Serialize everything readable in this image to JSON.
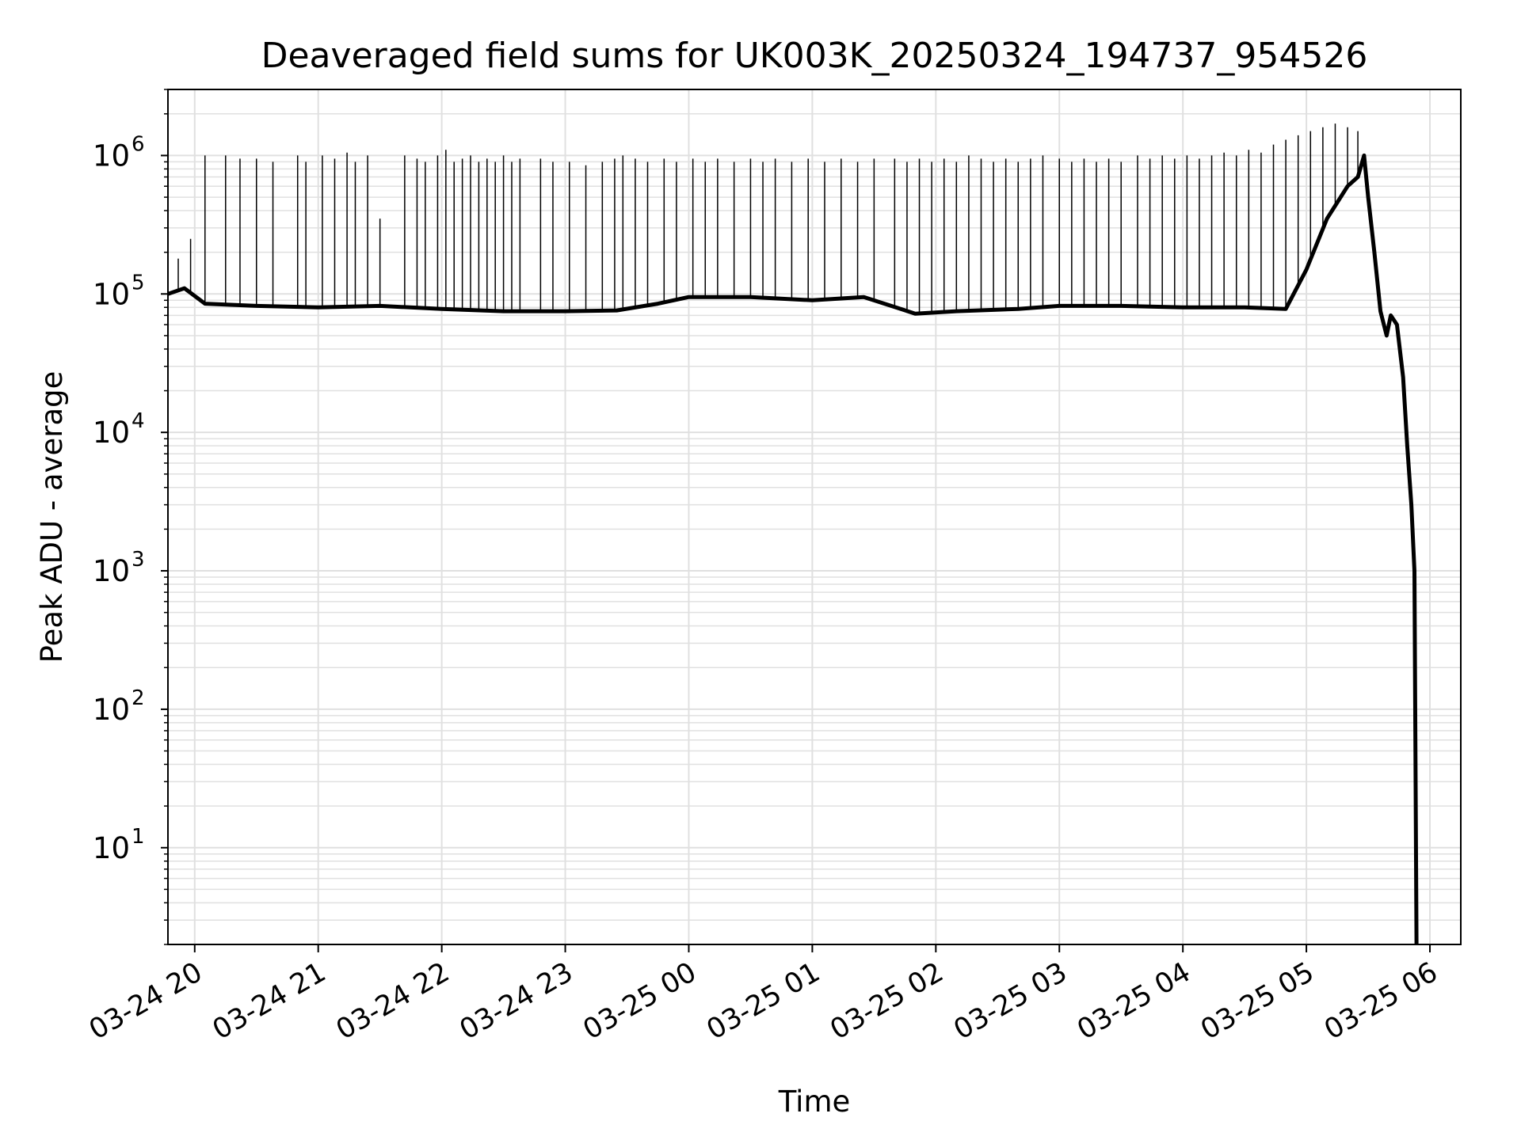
{
  "chart_data": {
    "type": "line",
    "title": "Deaveraged field sums for UK003K_20250324_194737_954526",
    "xlabel": "Time",
    "ylabel": "Peak ADU - average",
    "yscale": "log",
    "grid": true,
    "grid_minor": true,
    "legend": "none",
    "colors": {
      "line": "#000000",
      "grid": "#e0e0e0",
      "axes": "#000000",
      "background": "#ffffff"
    },
    "xlim": [
      "2025-03-24T19:47:00",
      "2025-03-25T06:15:00"
    ],
    "ylim": [
      2,
      3000000
    ],
    "x_ticks": [
      {
        "value": "2025-03-24T20:00:00",
        "label": "03-24 20"
      },
      {
        "value": "2025-03-24T21:00:00",
        "label": "03-24 21"
      },
      {
        "value": "2025-03-24T22:00:00",
        "label": "03-24 22"
      },
      {
        "value": "2025-03-24T23:00:00",
        "label": "03-24 23"
      },
      {
        "value": "2025-03-25T00:00:00",
        "label": "03-25 00"
      },
      {
        "value": "2025-03-25T01:00:00",
        "label": "03-25 01"
      },
      {
        "value": "2025-03-25T02:00:00",
        "label": "03-25 02"
      },
      {
        "value": "2025-03-25T03:00:00",
        "label": "03-25 03"
      },
      {
        "value": "2025-03-25T04:00:00",
        "label": "03-25 04"
      },
      {
        "value": "2025-03-25T05:00:00",
        "label": "03-25 05"
      },
      {
        "value": "2025-03-25T06:00:00",
        "label": "03-25 06"
      }
    ],
    "y_ticks": [
      {
        "value": 10,
        "base": "10",
        "exp": "1"
      },
      {
        "value": 100,
        "base": "10",
        "exp": "2"
      },
      {
        "value": 1000,
        "base": "10",
        "exp": "3"
      },
      {
        "value": 10000,
        "base": "10",
        "exp": "4"
      },
      {
        "value": 100000,
        "base": "10",
        "exp": "5"
      },
      {
        "value": 1000000,
        "base": "10",
        "exp": "6"
      }
    ],
    "series": [
      {
        "x": [
          "2025-03-24T19:47:00",
          "2025-03-24T19:55:00",
          "2025-03-24T20:05:00",
          "2025-03-24T20:30:00",
          "2025-03-24T21:00:00",
          "2025-03-24T21:30:00",
          "2025-03-24T22:00:00",
          "2025-03-24T22:30:00",
          "2025-03-24T22:45:00",
          "2025-03-24T23:00:00",
          "2025-03-24T23:25:00",
          "2025-03-24T23:45:00",
          "2025-03-25T00:00:00",
          "2025-03-25T00:30:00",
          "2025-03-25T01:00:00",
          "2025-03-25T01:25:00",
          "2025-03-25T01:50:00",
          "2025-03-25T02:10:00",
          "2025-03-25T02:40:00",
          "2025-03-25T03:00:00",
          "2025-03-25T03:30:00",
          "2025-03-25T04:00:00",
          "2025-03-25T04:30:00",
          "2025-03-25T04:50:00",
          "2025-03-25T05:00:00",
          "2025-03-25T05:10:00",
          "2025-03-25T05:20:00",
          "2025-03-25T05:25:00",
          "2025-03-25T05:28:00",
          "2025-03-25T05:30:00",
          "2025-03-25T05:33:00",
          "2025-03-25T05:36:00",
          "2025-03-25T05:39:00",
          "2025-03-25T05:41:00",
          "2025-03-25T05:44:00",
          "2025-03-25T05:47:00",
          "2025-03-25T05:49:00",
          "2025-03-25T05:51:00",
          "2025-03-25T05:52:30",
          "2025-03-25T05:53:30"
        ],
        "y": [
          100000,
          110000,
          85000,
          82000,
          80000,
          82000,
          78000,
          75000,
          75000,
          75000,
          76000,
          85000,
          95000,
          95000,
          90000,
          95000,
          72000,
          75000,
          78000,
          82000,
          82000,
          80000,
          80000,
          78000,
          150000,
          350000,
          600000,
          700000,
          1000000,
          500000,
          200000,
          75000,
          50000,
          70000,
          60000,
          25000,
          8000,
          3000,
          1000,
          2
        ],
        "spikes": [
          [
            "2025-03-24T19:52:00",
            180000
          ],
          [
            "2025-03-24T19:58:00",
            250000
          ],
          [
            "2025-03-24T20:05:00",
            1000000
          ],
          [
            "2025-03-24T20:15:00",
            1000000
          ],
          [
            "2025-03-24T20:22:00",
            950000
          ],
          [
            "2025-03-24T20:30:00",
            950000
          ],
          [
            "2025-03-24T20:38:00",
            900000
          ],
          [
            "2025-03-24T20:50:00",
            1000000
          ],
          [
            "2025-03-24T20:54:00",
            900000
          ],
          [
            "2025-03-24T21:02:00",
            1000000
          ],
          [
            "2025-03-24T21:08:00",
            950000
          ],
          [
            "2025-03-24T21:14:00",
            1050000
          ],
          [
            "2025-03-24T21:18:00",
            900000
          ],
          [
            "2025-03-24T21:24:00",
            1000000
          ],
          [
            "2025-03-24T21:30:00",
            350000
          ],
          [
            "2025-03-24T21:42:00",
            1000000
          ],
          [
            "2025-03-24T21:48:00",
            950000
          ],
          [
            "2025-03-24T21:52:00",
            900000
          ],
          [
            "2025-03-24T21:58:00",
            1000000
          ],
          [
            "2025-03-24T22:02:00",
            1100000
          ],
          [
            "2025-03-24T22:06:00",
            900000
          ],
          [
            "2025-03-24T22:10:00",
            950000
          ],
          [
            "2025-03-24T22:14:00",
            1000000
          ],
          [
            "2025-03-24T22:18:00",
            900000
          ],
          [
            "2025-03-24T22:22:00",
            950000
          ],
          [
            "2025-03-24T22:26:00",
            900000
          ],
          [
            "2025-03-24T22:30:00",
            1000000
          ],
          [
            "2025-03-24T22:34:00",
            900000
          ],
          [
            "2025-03-24T22:38:00",
            950000
          ],
          [
            "2025-03-24T22:48:00",
            950000
          ],
          [
            "2025-03-24T22:54:00",
            900000
          ],
          [
            "2025-03-24T23:02:00",
            900000
          ],
          [
            "2025-03-24T23:10:00",
            850000
          ],
          [
            "2025-03-24T23:18:00",
            900000
          ],
          [
            "2025-03-24T23:24:00",
            950000
          ],
          [
            "2025-03-24T23:28:00",
            1000000
          ],
          [
            "2025-03-24T23:34:00",
            950000
          ],
          [
            "2025-03-24T23:40:00",
            900000
          ],
          [
            "2025-03-24T23:48:00",
            950000
          ],
          [
            "2025-03-24T23:54:00",
            900000
          ],
          [
            "2025-03-25T00:02:00",
            950000
          ],
          [
            "2025-03-25T00:08:00",
            900000
          ],
          [
            "2025-03-25T00:14:00",
            950000
          ],
          [
            "2025-03-25T00:22:00",
            900000
          ],
          [
            "2025-03-25T00:30:00",
            950000
          ],
          [
            "2025-03-25T00:36:00",
            900000
          ],
          [
            "2025-03-25T00:42:00",
            950000
          ],
          [
            "2025-03-25T00:50:00",
            900000
          ],
          [
            "2025-03-25T00:58:00",
            950000
          ],
          [
            "2025-03-25T01:06:00",
            900000
          ],
          [
            "2025-03-25T01:14:00",
            950000
          ],
          [
            "2025-03-25T01:22:00",
            900000
          ],
          [
            "2025-03-25T01:30:00",
            950000
          ],
          [
            "2025-03-25T01:40:00",
            950000
          ],
          [
            "2025-03-25T01:46:00",
            900000
          ],
          [
            "2025-03-25T01:52:00",
            950000
          ],
          [
            "2025-03-25T01:58:00",
            900000
          ],
          [
            "2025-03-25T02:04:00",
            950000
          ],
          [
            "2025-03-25T02:10:00",
            900000
          ],
          [
            "2025-03-25T02:16:00",
            1000000
          ],
          [
            "2025-03-25T02:22:00",
            950000
          ],
          [
            "2025-03-25T02:28:00",
            900000
          ],
          [
            "2025-03-25T02:34:00",
            950000
          ],
          [
            "2025-03-25T02:40:00",
            900000
          ],
          [
            "2025-03-25T02:46:00",
            950000
          ],
          [
            "2025-03-25T02:52:00",
            1000000
          ],
          [
            "2025-03-25T03:00:00",
            950000
          ],
          [
            "2025-03-25T03:06:00",
            900000
          ],
          [
            "2025-03-25T03:12:00",
            950000
          ],
          [
            "2025-03-25T03:18:00",
            900000
          ],
          [
            "2025-03-25T03:24:00",
            950000
          ],
          [
            "2025-03-25T03:30:00",
            900000
          ],
          [
            "2025-03-25T03:38:00",
            1000000
          ],
          [
            "2025-03-25T03:44:00",
            950000
          ],
          [
            "2025-03-25T03:50:00",
            1000000
          ],
          [
            "2025-03-25T03:56:00",
            950000
          ],
          [
            "2025-03-25T04:02:00",
            1000000
          ],
          [
            "2025-03-25T04:08:00",
            950000
          ],
          [
            "2025-03-25T04:14:00",
            1000000
          ],
          [
            "2025-03-25T04:20:00",
            1050000
          ],
          [
            "2025-03-25T04:26:00",
            1000000
          ],
          [
            "2025-03-25T04:32:00",
            1100000
          ],
          [
            "2025-03-25T04:38:00",
            1050000
          ],
          [
            "2025-03-25T04:44:00",
            1200000
          ],
          [
            "2025-03-25T04:50:00",
            1300000
          ],
          [
            "2025-03-25T04:56:00",
            1400000
          ],
          [
            "2025-03-25T05:02:00",
            1500000
          ],
          [
            "2025-03-25T05:08:00",
            1600000
          ],
          [
            "2025-03-25T05:14:00",
            1700000
          ],
          [
            "2025-03-25T05:20:00",
            1600000
          ],
          [
            "2025-03-25T05:25:00",
            1500000
          ]
        ]
      }
    ]
  }
}
